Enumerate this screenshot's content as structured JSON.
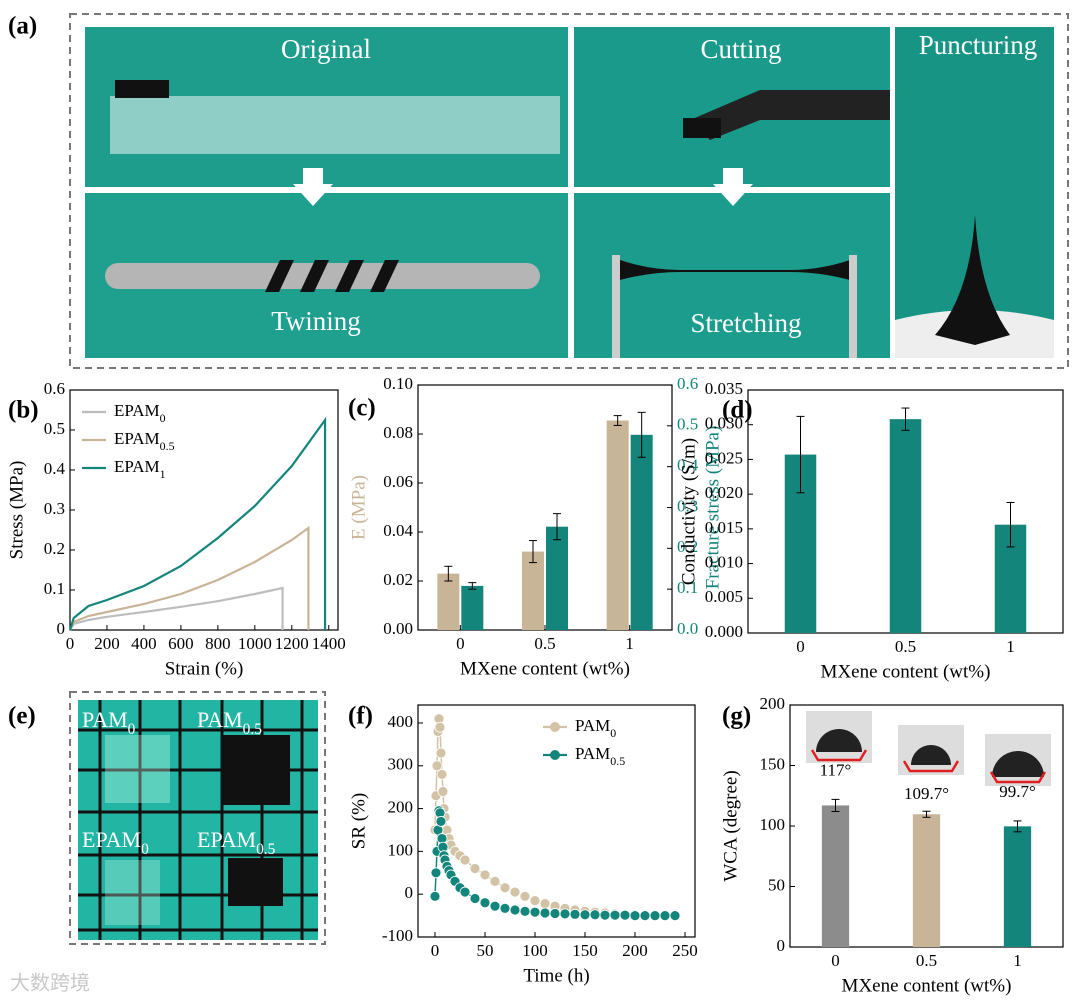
{
  "photo_panels": [
    {
      "label": "(a)",
      "photos": [
        "Original",
        "Cutting",
        "Puncturing",
        "Twining",
        "Stretching"
      ]
    },
    {
      "label": "(e)",
      "photos": [
        "PAM0",
        "PAM0.5",
        "EPAM0",
        "EPAM0.5"
      ]
    }
  ],
  "watermark": "大数跨境",
  "chart_data": [
    {
      "type": "line",
      "label": "(b)",
      "xlabel": "Strain (%)",
      "ylabel": "Stress (MPa)",
      "xlim": [
        0,
        1450
      ],
      "xticks": [
        0,
        200,
        400,
        600,
        800,
        1000,
        1200,
        1400
      ],
      "ylim": [
        0,
        0.6
      ],
      "yticks": [
        0.0,
        0.1,
        0.2,
        0.3,
        0.4,
        0.5,
        0.6
      ],
      "legend": "upper-left",
      "series": [
        {
          "name": "EPAM0",
          "color": "#bdbdbd",
          "x": [
            0,
            20,
            100,
            200,
            400,
            600,
            800,
            1000,
            1150,
            1150
          ],
          "values": [
            0,
            0.015,
            0.025,
            0.033,
            0.045,
            0.058,
            0.072,
            0.09,
            0.105,
            0
          ]
        },
        {
          "name": "EPAM0.5",
          "color": "#c8b496",
          "x": [
            0,
            20,
            100,
            200,
            400,
            600,
            800,
            1000,
            1200,
            1290,
            1290
          ],
          "values": [
            0,
            0.02,
            0.035,
            0.045,
            0.065,
            0.09,
            0.125,
            0.17,
            0.225,
            0.255,
            0
          ]
        },
        {
          "name": "EPAM1",
          "color": "#13857b",
          "x": [
            0,
            20,
            100,
            200,
            400,
            600,
            800,
            1000,
            1200,
            1380,
            1380
          ],
          "values": [
            0,
            0.03,
            0.06,
            0.075,
            0.11,
            0.16,
            0.23,
            0.31,
            0.41,
            0.525,
            0
          ]
        }
      ]
    },
    {
      "type": "dualbar",
      "label": "(c)",
      "xlabel": "MXene content (wt%)",
      "ylabel": "E (MPa)",
      "y2label": "Fracture stress (MPa)",
      "categories": [
        "0",
        "0.5",
        "1"
      ],
      "ylim": [
        0,
        0.1
      ],
      "yticks": [
        {
          "value": 0,
          "label": "0.00"
        },
        0.02,
        0.04,
        0.06,
        0.08,
        {
          "value": 0.1,
          "label": "0.10"
        }
      ],
      "y2lim": [
        0,
        0.6
      ],
      "y2ticks": [
        {
          "value": 0,
          "label": "0.0"
        },
        0.1,
        0.2,
        0.3,
        0.4,
        0.5,
        0.6
      ],
      "series": [
        {
          "color": "#c8b496",
          "values": [
            0.023,
            0.032,
            0.0855
          ],
          "errors": [
            0.003,
            0.0045,
            0.002
          ]
        },
        {
          "color": "#13857b",
          "axis": "y2",
          "values": [
            0.108,
            0.253,
            0.478
          ],
          "errors": [
            0.008,
            0.032,
            0.055
          ]
        }
      ]
    },
    {
      "type": "bar",
      "label": "(d)",
      "xlabel": "MXene content (wt%)",
      "ylabel": "Conductivity (S/m)",
      "categories": [
        "0",
        "0.5",
        "1"
      ],
      "ylim": [
        0,
        0.035
      ],
      "yticks": [
        {
          "value": 0,
          "label": "0.000"
        },
        0.005,
        {
          "value": 0.01,
          "label": "0.010"
        },
        0.015,
        {
          "value": 0.02,
          "label": "0.020"
        },
        0.025,
        {
          "value": 0.03,
          "label": "0.030"
        },
        0.035
      ],
      "colors": [
        "#13857b",
        "#13857b",
        "#13857b"
      ],
      "values": [
        0.0257,
        0.0308,
        0.0156
      ],
      "errors": [
        0.0055,
        0.0016,
        0.0032
      ]
    },
    {
      "type": "dotline",
      "label": "(f)",
      "xlabel": "Time (h)",
      "ylabel": "SR (%)",
      "xlim": [
        -17,
        260
      ],
      "xticks": [
        0,
        50,
        100,
        150,
        200,
        250
      ],
      "ylim": [
        -100,
        442
      ],
      "yticks": [
        -100,
        0,
        100,
        200,
        300,
        400
      ],
      "legend": "upper-right",
      "x": [
        0,
        1,
        2,
        3,
        4,
        5,
        6,
        7,
        8,
        9,
        10,
        12,
        14,
        16,
        20,
        25,
        30,
        40,
        50,
        60,
        70,
        80,
        90,
        100,
        110,
        120,
        130,
        140,
        150,
        160,
        170,
        180,
        190,
        200,
        210,
        220,
        230,
        240
      ],
      "series": [
        {
          "name": "PAM0",
          "color": "#d2c2a6",
          "values": [
            150,
            230,
            300,
            380,
            410,
            390,
            330,
            280,
            240,
            200,
            180,
            150,
            130,
            115,
            100,
            90,
            80,
            60,
            45,
            30,
            15,
            5,
            -5,
            -15,
            -22,
            -28,
            -33,
            -37,
            -40,
            -42,
            -44,
            -46,
            -47,
            -48,
            -49,
            -49,
            -50,
            -50
          ]
        },
        {
          "name": "PAM0.5",
          "color": "#13857b",
          "values": [
            -5,
            50,
            100,
            150,
            195,
            190,
            170,
            130,
            110,
            90,
            80,
            65,
            55,
            45,
            30,
            15,
            5,
            -10,
            -20,
            -28,
            -33,
            -37,
            -40,
            -42,
            -44,
            -45,
            -46,
            -47,
            -48,
            -48,
            -49,
            -49,
            -49,
            -50,
            -50,
            -50,
            -50,
            -50
          ]
        }
      ]
    },
    {
      "type": "bar",
      "label": "(g)",
      "xlabel": "MXene content (wt%)",
      "ylabel": "WCA (degree)",
      "categories": [
        "0",
        "0.5",
        "1"
      ],
      "ylim": [
        0,
        200
      ],
      "yticks": [
        0,
        50,
        100,
        150,
        200
      ],
      "colors": [
        "#8c8c8c",
        "#c8b496",
        "#13857b"
      ],
      "values": [
        117,
        109.7,
        99.7
      ],
      "errors": [
        5,
        2.5,
        4.5
      ],
      "value_labels": [
        "117°",
        "109.7°",
        "99.7°"
      ]
    }
  ]
}
